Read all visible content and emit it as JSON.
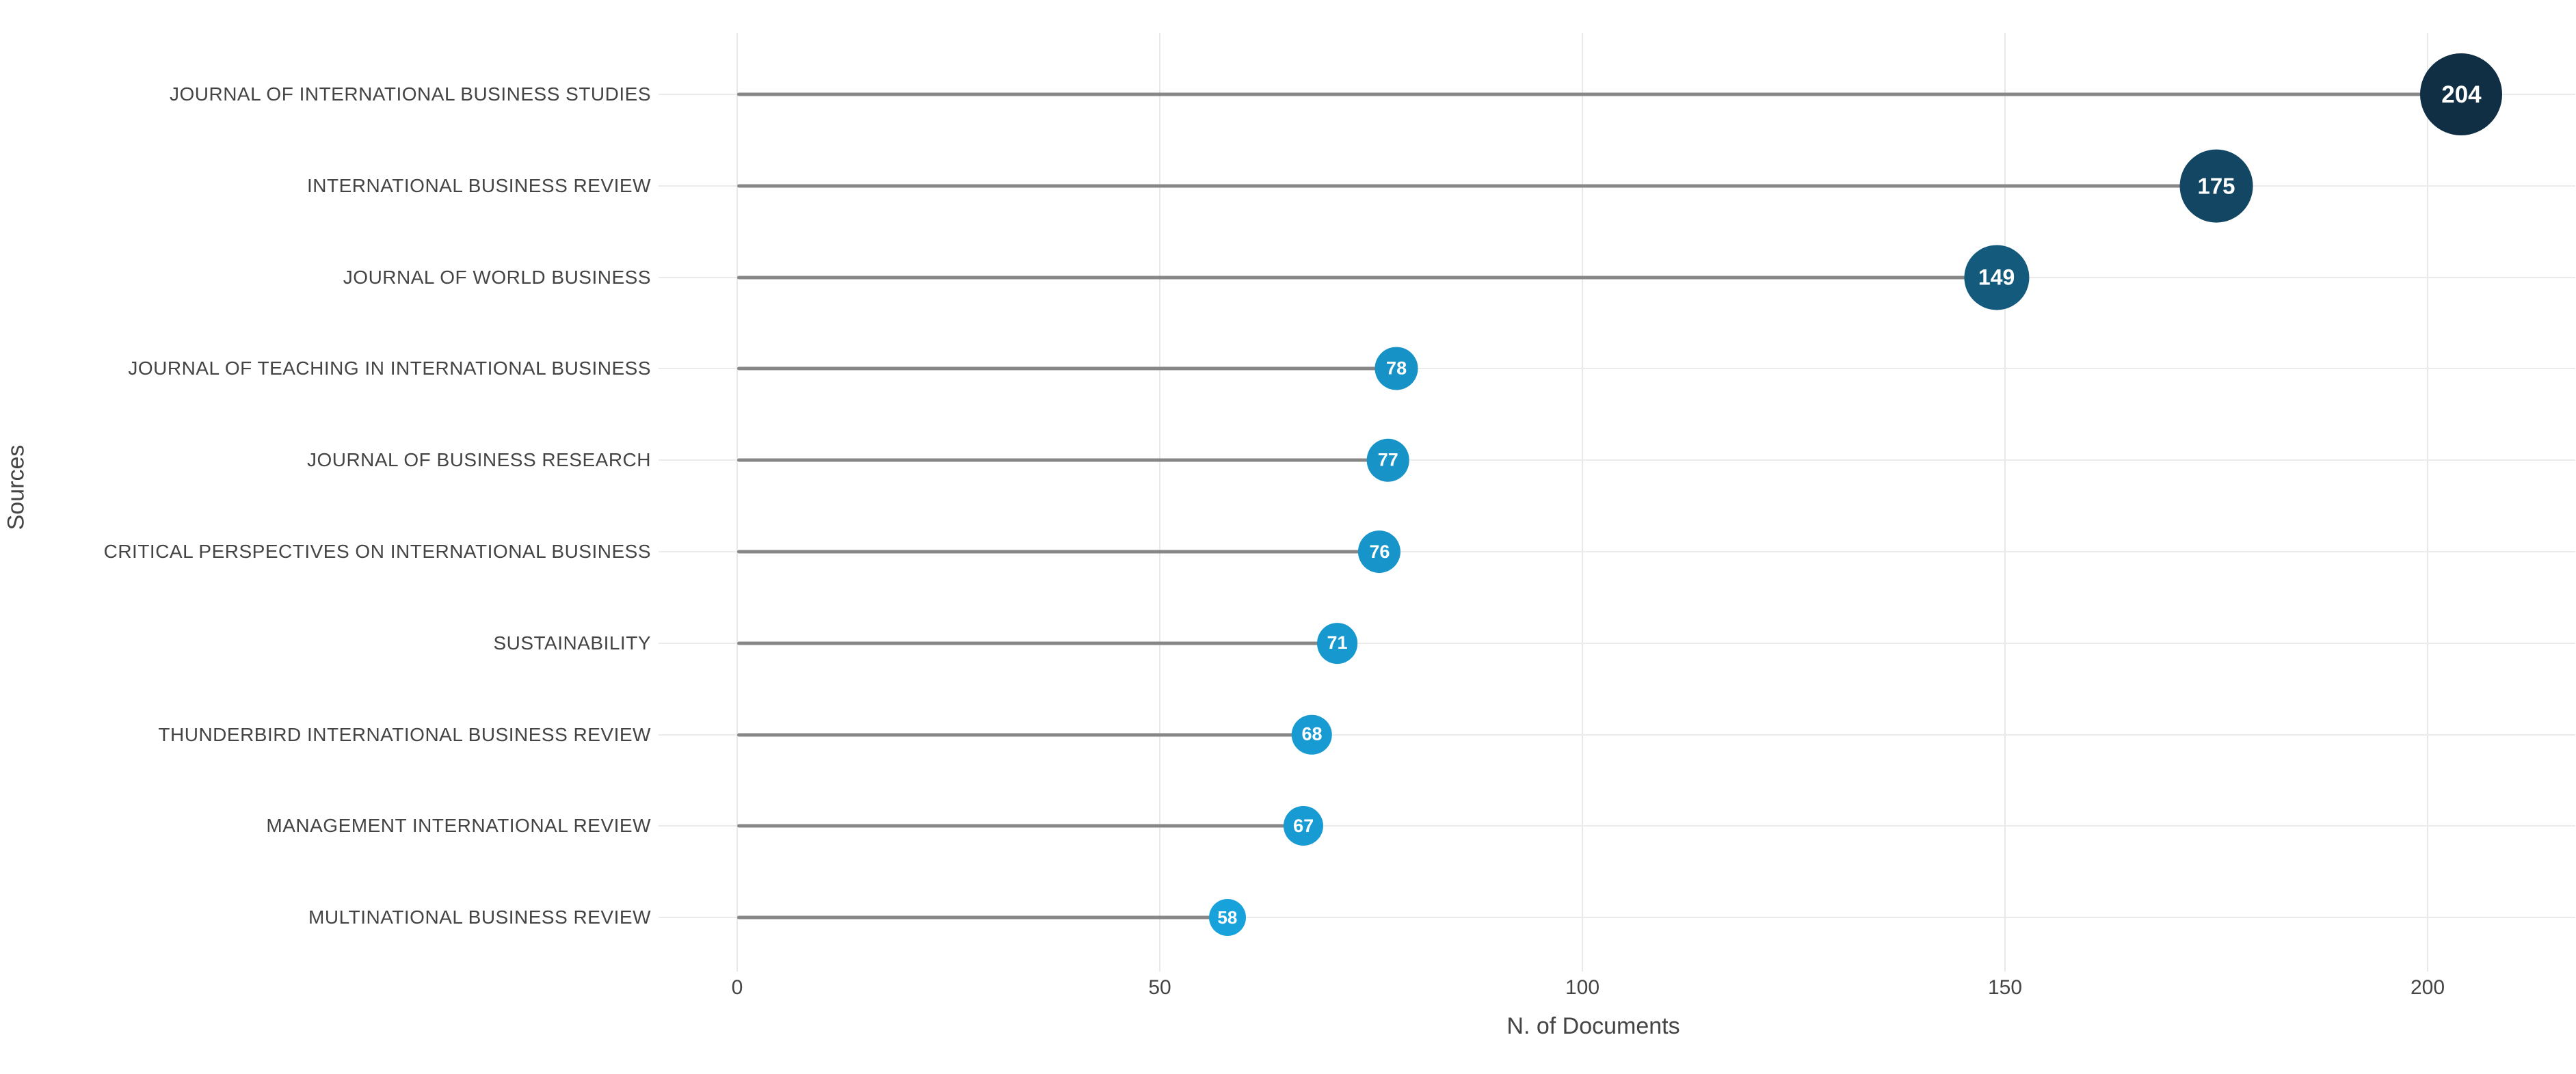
{
  "chart_data": {
    "type": "scatter",
    "variant": "horizontal-lollipop",
    "title": "",
    "xlabel": "N. of Documents",
    "ylabel": "Sources",
    "categories": [
      "JOURNAL OF INTERNATIONAL BUSINESS STUDIES",
      "INTERNATIONAL BUSINESS REVIEW",
      "JOURNAL OF WORLD BUSINESS",
      "JOURNAL OF TEACHING IN INTERNATIONAL BUSINESS",
      "JOURNAL OF BUSINESS RESEARCH",
      "CRITICAL PERSPECTIVES ON INTERNATIONAL BUSINESS",
      "SUSTAINABILITY",
      "THUNDERBIRD INTERNATIONAL BUSINESS REVIEW",
      "MANAGEMENT INTERNATIONAL REVIEW",
      "MULTINATIONAL BUSINESS REVIEW"
    ],
    "values": [
      204,
      175,
      149,
      78,
      77,
      76,
      71,
      68,
      67,
      58
    ],
    "xticks": [
      0,
      50,
      100,
      150,
      200
    ],
    "xlim": [
      0,
      217
    ],
    "grid": true,
    "legend_position": "none",
    "colors": {
      "marker_low": "#18A2DC",
      "marker_high": "#112F44",
      "stem": "#878787",
      "gridline": "#EBEBEB",
      "axis_text": "#444444",
      "marker_label": "#FFFFFF",
      "background": "#FFFFFF"
    }
  }
}
